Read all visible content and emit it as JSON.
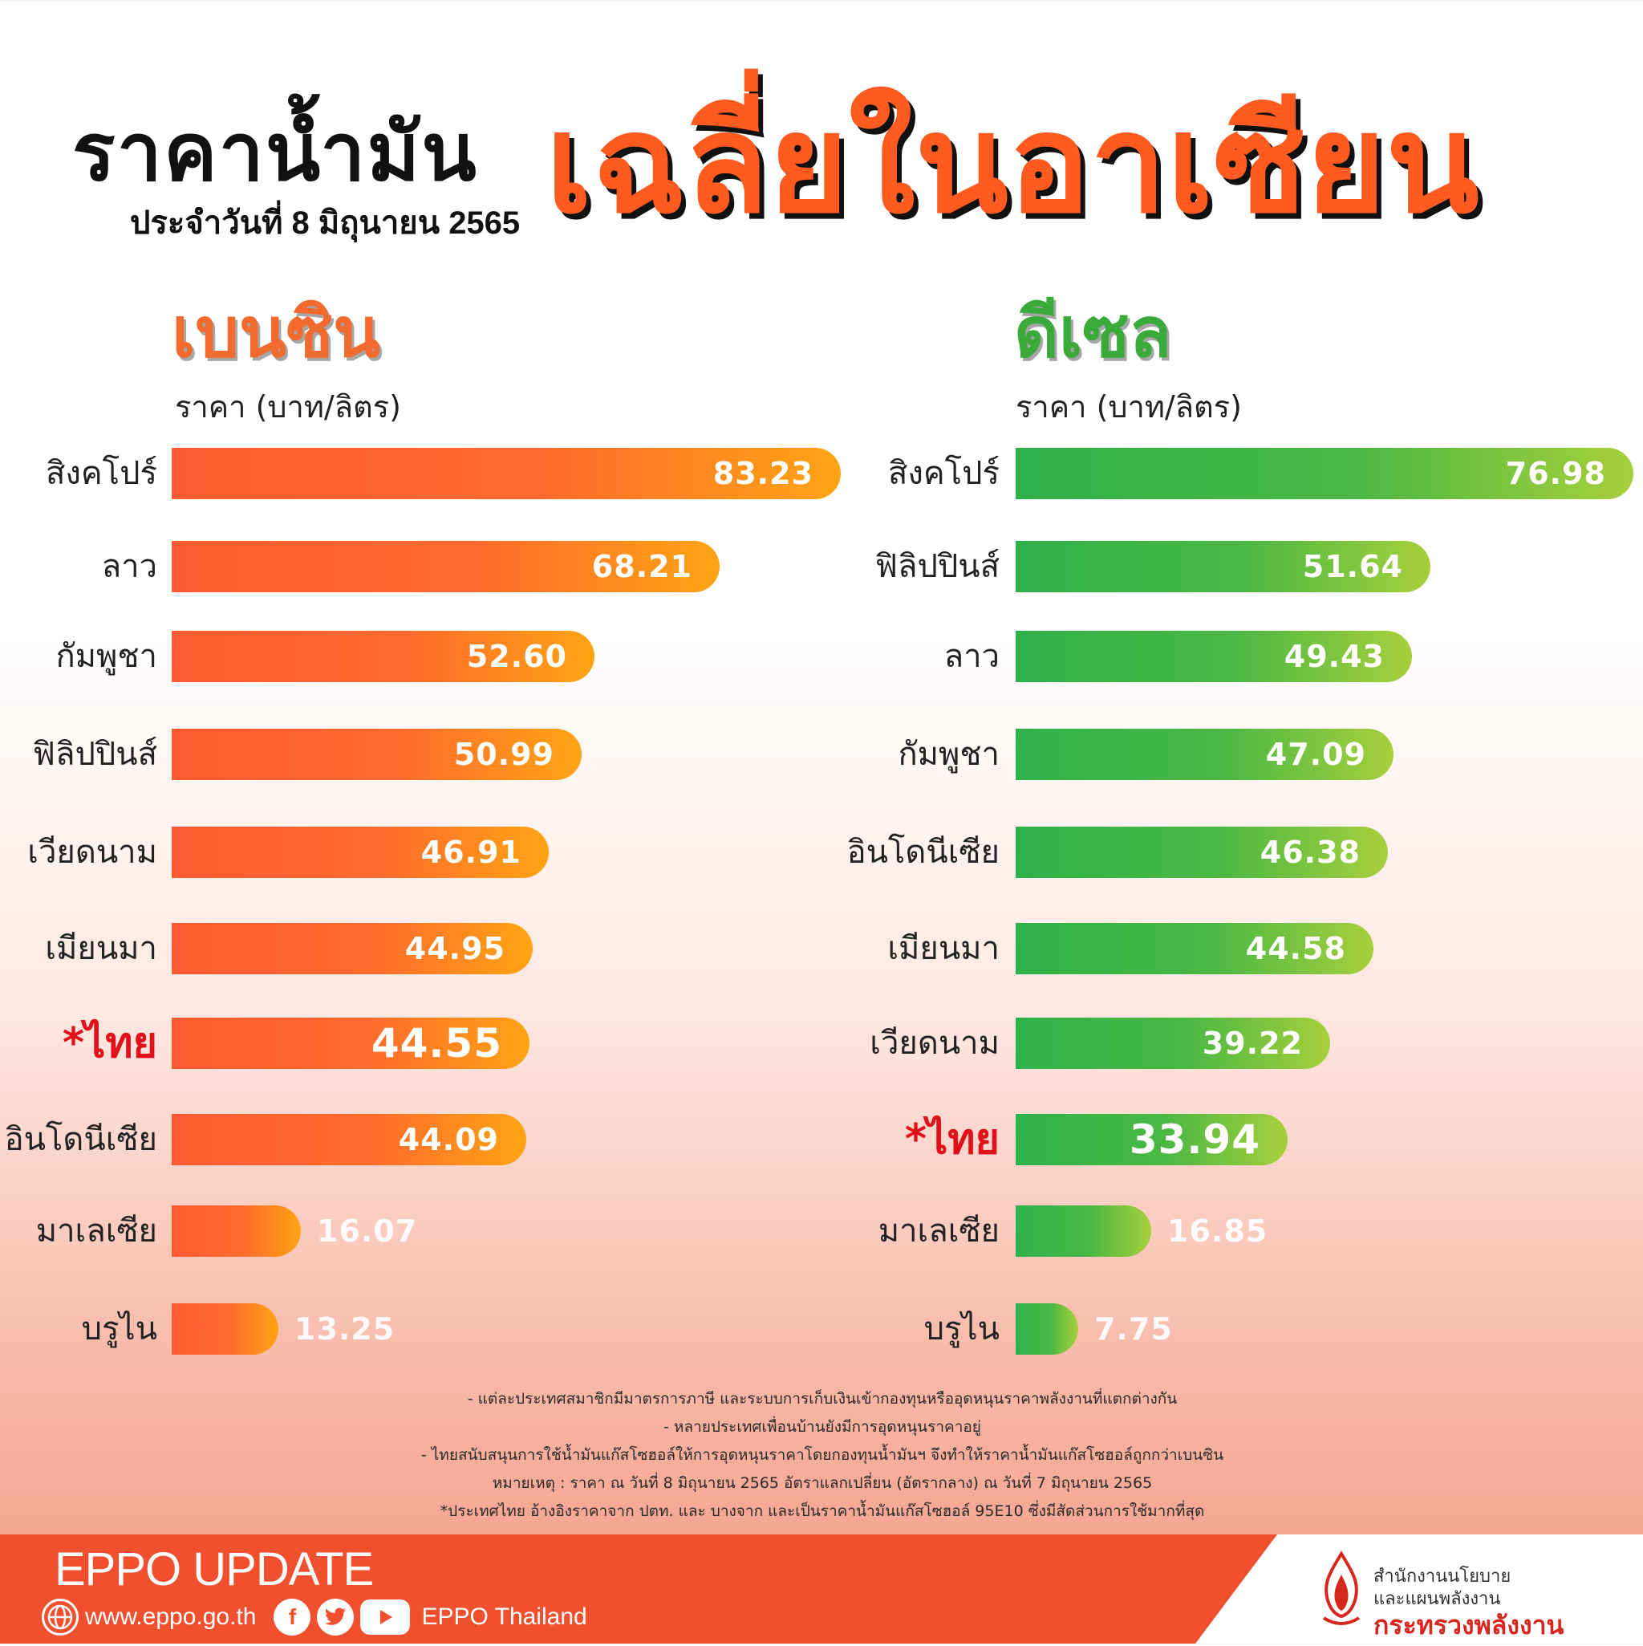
{
  "header": {
    "title_main": "ราคาน้ำมัน",
    "title_accent": "เฉลี่ยในอาเซียน",
    "date": "ประจำวันที่ 8 มิถุนายน 2565"
  },
  "chart_data": [
    {
      "type": "bar",
      "orientation": "horizontal",
      "title": "เบนซิน",
      "ylabel": "ราคา (บาท/ลิตร)",
      "color": "#ff6a2c",
      "categories": [
        "สิงคโปร์",
        "ลาว",
        "กัมพูชา",
        "ฟิลิปปินส์",
        "เวียดนาม",
        "เมียนมา",
        "*ไทย",
        "อินโดนีเซีย",
        "มาเลเซีย",
        "บรูไน"
      ],
      "values": [
        83.23,
        68.21,
        52.6,
        50.99,
        46.91,
        44.95,
        44.55,
        44.09,
        16.07,
        13.25
      ],
      "labels": [
        "83.23",
        "68.21",
        "52.60",
        "50.99",
        "46.91",
        "44.95",
        "44.55",
        "44.09",
        "16.07",
        "13.25"
      ],
      "highlight": "*ไทย"
    },
    {
      "type": "bar",
      "orientation": "horizontal",
      "title": "ดีเซล",
      "ylabel": "ราคา (บาท/ลิตร)",
      "color": "#3aaa3a",
      "categories": [
        "สิงคโปร์",
        "ฟิลิปปินส์",
        "ลาว",
        "กัมพูชา",
        "อินโดนีเซีย",
        "เมียนมา",
        "เวียดนาม",
        "*ไทย",
        "มาเลเซีย",
        "บรูไน"
      ],
      "values": [
        76.98,
        51.64,
        49.43,
        47.09,
        46.38,
        44.58,
        39.22,
        33.94,
        16.85,
        7.75
      ],
      "labels": [
        "76.98",
        "51.64",
        "49.43",
        "47.09",
        "46.38",
        "44.58",
        "39.22",
        "33.94",
        "16.85",
        "7.75"
      ],
      "highlight": "*ไทย"
    }
  ],
  "notes": [
    "- แต่ละประเทศสมาชิกมีมาตรการภาษี และระบบการเก็บเงินเข้ากองทุนหรืออุดหนุนราคาพลังงานที่แตกต่างกัน",
    "- หลายประเทศเพื่อนบ้านยังมีการอุดหนุนราคาอยู่",
    "- ไทยสนับสนุนการใช้น้ำมันแก๊สโซฮอล์ให้การอุดหนุนราคาโดยกองทุนน้ำมันฯ จึงทำให้ราคาน้ำมันแก๊สโซฮอล์ถูกกว่าเบนซิน",
    "หมายเหตุ : ราคา ณ วันที่ 8 มิถุนายน 2565 อัตราแลกเปลี่ยน (อัตรากลาง) ณ วันที่ 7 มิถุนายน 2565",
    "*ประเทศไทย อ้างอิงราคาจาก ปตท. และ บางจาก และเป็นราคาน้ำมันแก๊สโซฮอล์ 95E10 ซึ่งมีสัดส่วนการใช้มากที่สุด"
  ],
  "footer": {
    "brand": "EPPO UPDATE",
    "website": "www.eppo.go.th",
    "social_name": "EPPO Thailand",
    "org_line1": "สำนักงานนโยบาย",
    "org_line2": "และแผนพลังงาน",
    "ministry": "กระทรวงพลังงาน",
    "icons": [
      "globe-icon",
      "facebook-icon",
      "twitter-icon",
      "youtube-icon",
      "flame-logo-icon"
    ]
  }
}
